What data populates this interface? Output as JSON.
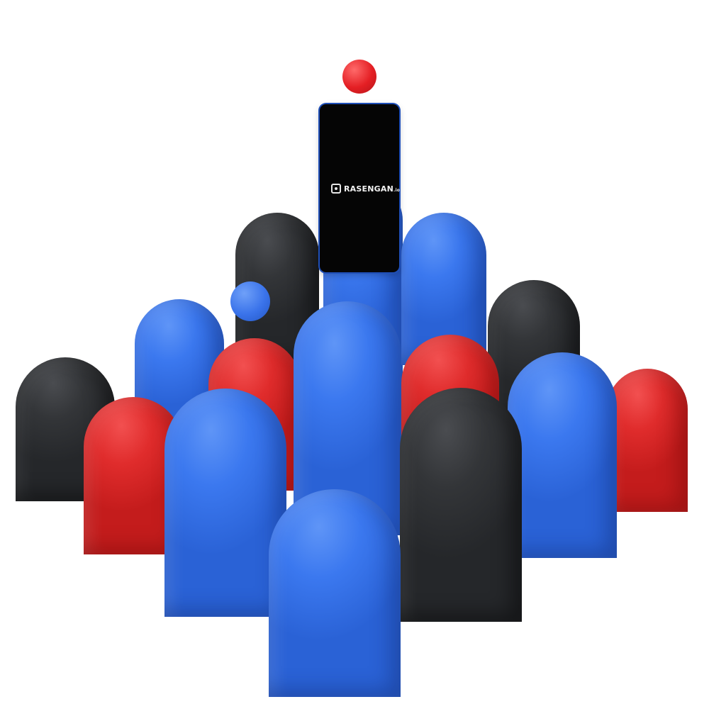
{
  "scene": {
    "description_colors": {
      "blue": "#3b78ef",
      "red": "#e02c2c",
      "black": "#333538",
      "background": "#ffffff"
    },
    "phone": {
      "logo_text": "RASENGAN",
      "logo_suffix": ".io",
      "icon": "rasengan-logo-icon"
    }
  }
}
